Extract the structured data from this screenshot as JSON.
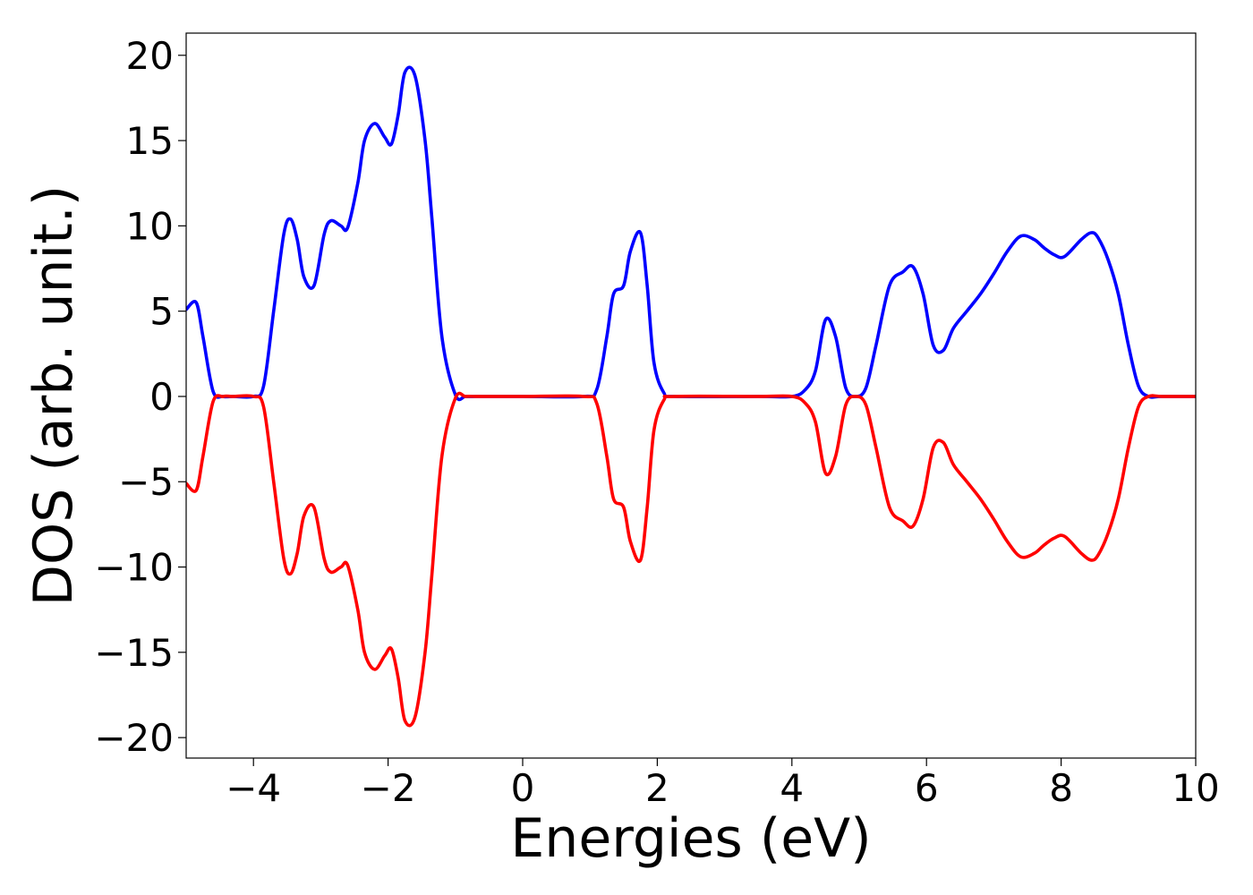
{
  "chart_data": {
    "type": "line",
    "title": "",
    "xlabel": "Energies (eV)",
    "ylabel": "DOS (arb. unit.)",
    "xlim": [
      -5,
      10
    ],
    "ylim": [
      -21.2,
      21.3
    ],
    "grid": false,
    "legend": "none",
    "x_ticks": [
      {
        "value": -4,
        "label": "−4"
      },
      {
        "value": -2,
        "label": "−2"
      },
      {
        "value": 0,
        "label": "0"
      },
      {
        "value": 2,
        "label": "2"
      },
      {
        "value": 4,
        "label": "4"
      },
      {
        "value": 6,
        "label": "6"
      },
      {
        "value": 8,
        "label": "8"
      },
      {
        "value": 10,
        "label": "10"
      }
    ],
    "y_ticks": [
      {
        "value": 20,
        "label": "20"
      },
      {
        "value": 15,
        "label": "15"
      },
      {
        "value": 10,
        "label": "10"
      },
      {
        "value": 5,
        "label": "5"
      },
      {
        "value": 0,
        "label": "0"
      },
      {
        "value": -5,
        "label": "−5"
      },
      {
        "value": -10,
        "label": "−10"
      },
      {
        "value": -15,
        "label": "−15"
      },
      {
        "value": -20,
        "label": "−20"
      }
    ],
    "series": [
      {
        "color": "#0000ff",
        "x": [
          -5.0,
          -4.85,
          -4.75,
          -4.6,
          -4.45,
          -4.3,
          -4.0,
          -3.85,
          -3.7,
          -3.55,
          -3.45,
          -3.35,
          -3.25,
          -3.1,
          -2.95,
          -2.85,
          -2.7,
          -2.6,
          -2.45,
          -2.35,
          -2.2,
          -2.05,
          -1.95,
          -1.85,
          -1.75,
          -1.6,
          -1.45,
          -1.35,
          -1.2,
          -1.0,
          -0.85,
          -0.7,
          -0.55,
          0.0,
          0.9,
          1.1,
          1.25,
          1.35,
          1.5,
          1.6,
          1.75,
          1.85,
          1.95,
          2.1,
          2.25,
          3.5,
          4.0,
          4.2,
          4.35,
          4.5,
          4.65,
          4.8,
          4.95,
          5.1,
          5.25,
          5.45,
          5.65,
          5.8,
          5.95,
          6.1,
          6.25,
          6.4,
          6.6,
          6.8,
          7.0,
          7.2,
          7.4,
          7.6,
          7.75,
          7.9,
          8.05,
          8.3,
          8.45,
          8.55,
          8.7,
          8.85,
          9.0,
          9.15,
          9.3,
          9.5,
          10.0
        ],
        "values": [
          5.1,
          5.5,
          3.5,
          0.3,
          0.0,
          0.0,
          0.0,
          0.6,
          5.0,
          9.5,
          10.4,
          9.2,
          7.0,
          6.5,
          9.5,
          10.3,
          10.0,
          9.9,
          12.5,
          15.0,
          16.0,
          15.2,
          14.8,
          16.5,
          19.0,
          18.8,
          15.0,
          10.5,
          3.5,
          0.1,
          0.0,
          0.0,
          0.0,
          0.0,
          0.0,
          0.4,
          3.5,
          6.0,
          6.5,
          8.5,
          9.6,
          6.5,
          2.0,
          0.2,
          0.0,
          0.0,
          0.0,
          0.4,
          1.5,
          4.5,
          3.5,
          0.5,
          0.0,
          0.5,
          3.0,
          6.5,
          7.3,
          7.6,
          6.0,
          3.0,
          2.7,
          4.0,
          5.0,
          6.0,
          7.2,
          8.5,
          9.4,
          9.2,
          8.7,
          8.3,
          8.2,
          9.2,
          9.6,
          9.3,
          8.0,
          6.0,
          3.0,
          0.6,
          0.0,
          0.0,
          0.0
        ]
      },
      {
        "color": "#ff0000",
        "x": [
          -5.0,
          -4.85,
          -4.75,
          -4.6,
          -4.45,
          -4.3,
          -4.0,
          -3.85,
          -3.7,
          -3.55,
          -3.45,
          -3.35,
          -3.25,
          -3.1,
          -2.95,
          -2.85,
          -2.7,
          -2.6,
          -2.45,
          -2.35,
          -2.2,
          -2.05,
          -1.95,
          -1.85,
          -1.75,
          -1.6,
          -1.45,
          -1.35,
          -1.2,
          -1.0,
          -0.85,
          -0.7,
          -0.55,
          0.0,
          0.9,
          1.1,
          1.25,
          1.35,
          1.5,
          1.6,
          1.75,
          1.85,
          1.95,
          2.1,
          2.25,
          3.5,
          4.0,
          4.2,
          4.35,
          4.5,
          4.65,
          4.8,
          4.95,
          5.1,
          5.25,
          5.45,
          5.65,
          5.8,
          5.95,
          6.1,
          6.25,
          6.4,
          6.6,
          6.8,
          7.0,
          7.2,
          7.4,
          7.6,
          7.75,
          7.9,
          8.05,
          8.3,
          8.45,
          8.55,
          8.7,
          8.85,
          9.0,
          9.15,
          9.3,
          9.5,
          10.0
        ],
        "values": [
          -5.1,
          -5.5,
          -3.5,
          -0.3,
          0.0,
          0.0,
          0.0,
          -0.6,
          -5.0,
          -9.5,
          -10.4,
          -9.2,
          -7.0,
          -6.5,
          -9.5,
          -10.3,
          -10.0,
          -9.9,
          -12.5,
          -15.0,
          -16.0,
          -15.2,
          -14.8,
          -16.5,
          -19.0,
          -18.8,
          -15.0,
          -10.5,
          -3.5,
          -0.1,
          0.0,
          0.0,
          0.0,
          0.0,
          0.0,
          -0.4,
          -3.5,
          -6.0,
          -6.5,
          -8.5,
          -9.6,
          -6.5,
          -2.0,
          -0.2,
          0.0,
          0.0,
          0.0,
          -0.4,
          -1.5,
          -4.5,
          -3.5,
          -0.5,
          0.0,
          -0.5,
          -3.0,
          -6.5,
          -7.3,
          -7.6,
          -6.0,
          -3.0,
          -2.7,
          -4.0,
          -5.0,
          -6.0,
          -7.2,
          -8.5,
          -9.4,
          -9.2,
          -8.7,
          -8.3,
          -8.2,
          -9.2,
          -9.6,
          -9.3,
          -8.0,
          -6.0,
          -3.0,
          -0.6,
          0.0,
          0.0,
          0.0
        ]
      }
    ]
  }
}
